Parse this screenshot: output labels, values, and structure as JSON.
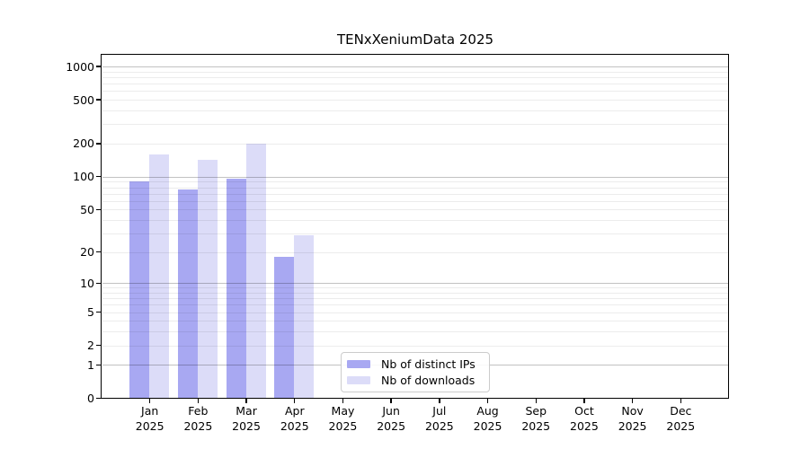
{
  "figure": {
    "title": "TENxXeniumData 2025"
  },
  "chart_data": {
    "type": "bar",
    "title": "TENxXeniumData 2025",
    "categories": [
      "Jan",
      "Feb",
      "Mar",
      "Apr",
      "May",
      "Jun",
      "Jul",
      "Aug",
      "Sep",
      "Oct",
      "Nov",
      "Dec"
    ],
    "x_tick_year": "2025",
    "series": [
      {
        "name": "Nb of distinct IPs",
        "color": "#a8a8f2",
        "values": [
          90,
          77,
          95,
          18,
          0,
          0,
          0,
          0,
          0,
          0,
          0,
          0
        ]
      },
      {
        "name": "Nb of downloads",
        "color": "#dcdcf8",
        "values": [
          160,
          143,
          199,
          29,
          0,
          0,
          0,
          0,
          0,
          0,
          0,
          0
        ]
      }
    ],
    "xlabel": "",
    "ylabel": "",
    "y_axis": {
      "scale": "log10(value+1)",
      "ticks": [
        0,
        1,
        2,
        5,
        10,
        20,
        50,
        100,
        200,
        500,
        1000
      ],
      "grid_major": [
        1,
        10,
        100,
        1000
      ],
      "grid_minor": [
        2,
        3,
        4,
        5,
        6,
        7,
        8,
        9,
        20,
        30,
        40,
        50,
        60,
        70,
        80,
        90,
        200,
        300,
        400,
        500,
        600,
        700,
        800,
        900
      ],
      "range_top": 1275
    },
    "legend": {
      "entries": [
        "Nb of distinct IPs",
        "Nb of downloads"
      ],
      "position": "bottom-center"
    },
    "grid": true,
    "colors": {
      "bar_distinct_ips": "#a8a8f2",
      "bar_downloads": "#dcdcf8",
      "grid_major": "rgba(0,0,0,0.24)",
      "grid_minor": "rgba(0,0,0,0.075)",
      "axis": "#000000",
      "background": "#ffffff",
      "legend_border": "#cccccc"
    }
  }
}
